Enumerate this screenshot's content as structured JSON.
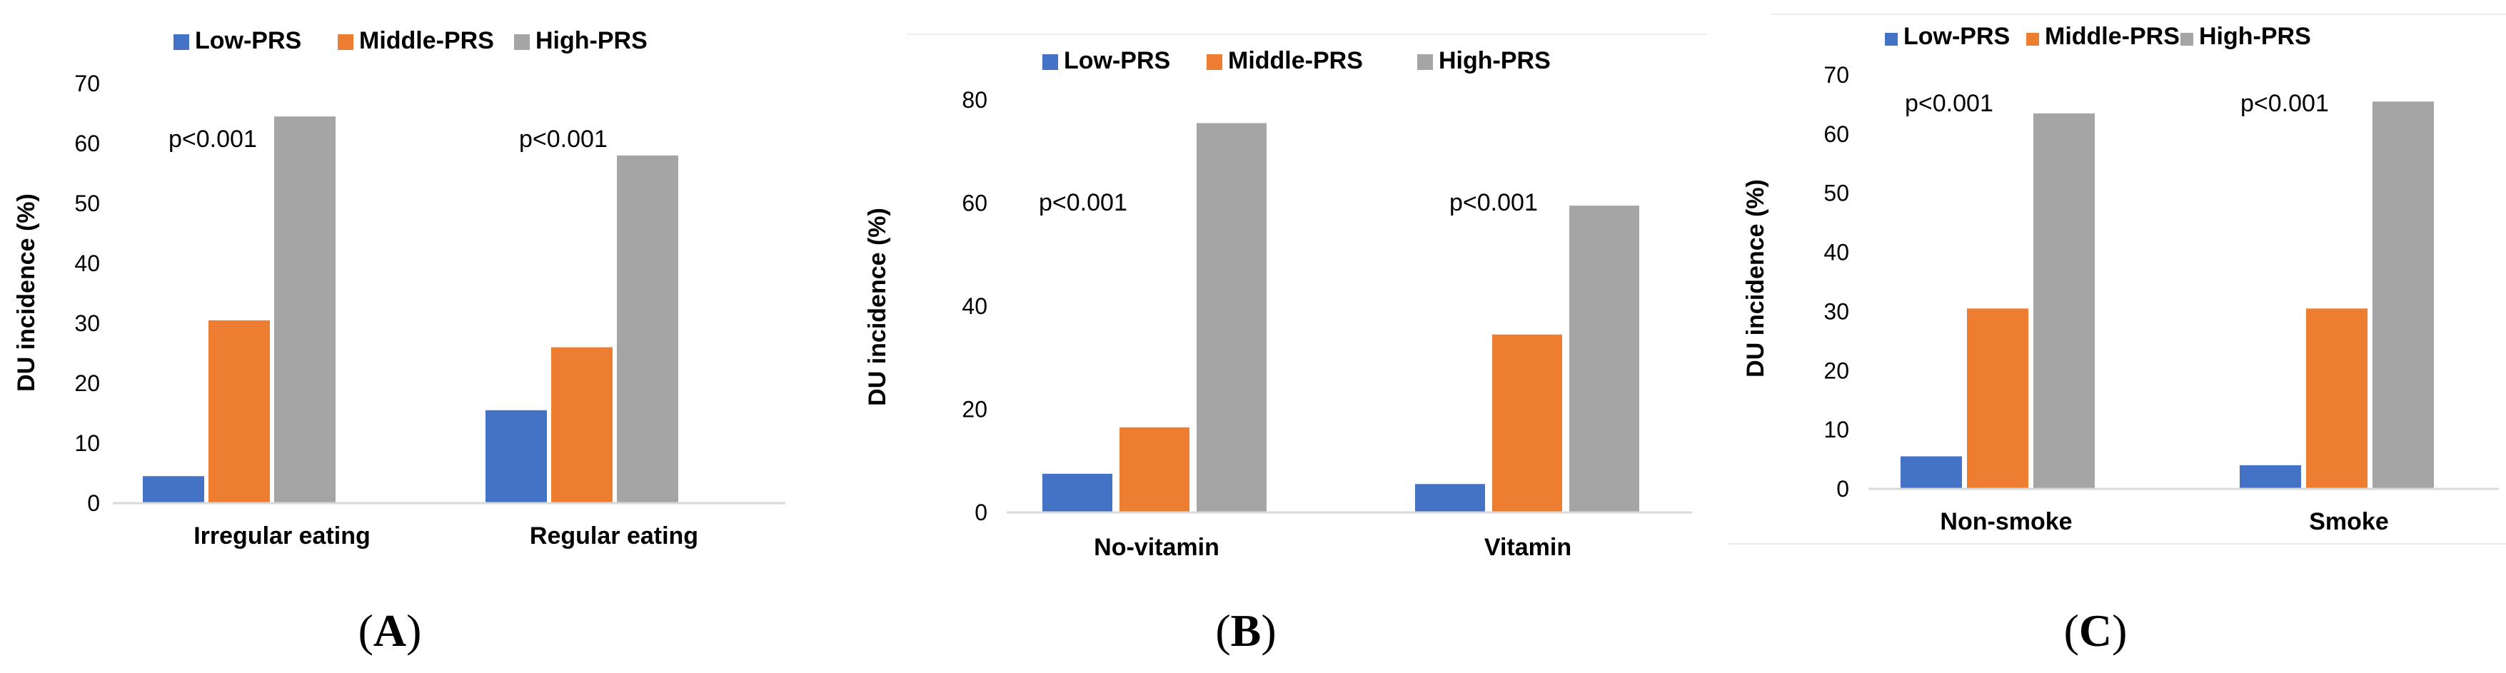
{
  "colors": {
    "low": "#4472c4",
    "middle": "#ed7d31",
    "high": "#a5a5a5"
  },
  "chart_data": [
    {
      "type": "bar",
      "panel_label": "A",
      "ylabel": "DU incidence (%)",
      "ylim": [
        0,
        70
      ],
      "yticks": [
        0,
        10,
        20,
        30,
        40,
        50,
        60,
        70
      ],
      "categories": [
        "Irregular eating",
        "Regular eating"
      ],
      "series": [
        {
          "name": "Low-PRS",
          "values": [
            4.5,
            15.5
          ]
        },
        {
          "name": "Middle-PRS",
          "values": [
            30.5,
            26.0
          ]
        },
        {
          "name": "High-PRS",
          "values": [
            64.5,
            58.0
          ]
        }
      ],
      "annotations": [
        "p<0.001",
        "p<0.001"
      ],
      "legend": "top"
    },
    {
      "type": "bar",
      "panel_label": "B",
      "ylabel": "DU incidence (%)",
      "ylim": [
        0,
        80
      ],
      "yticks": [
        0,
        20,
        40,
        60,
        80
      ],
      "categories": [
        "No-vitamin",
        "Vitamin"
      ],
      "series": [
        {
          "name": "Low-PRS",
          "values": [
            7.5,
            5.5
          ]
        },
        {
          "name": "Middle-PRS",
          "values": [
            16.5,
            34.5
          ]
        },
        {
          "name": "High-PRS",
          "values": [
            75.5,
            59.5
          ]
        }
      ],
      "annotations": [
        "p<0.001",
        "p<0.001"
      ],
      "legend": "top"
    },
    {
      "type": "bar",
      "panel_label": "C",
      "ylabel": "DU incidence (%)",
      "ylim": [
        0,
        70
      ],
      "yticks": [
        0,
        10,
        20,
        30,
        40,
        50,
        60,
        70
      ],
      "categories": [
        "Non-smoke",
        "Smoke"
      ],
      "series": [
        {
          "name": "Low-PRS",
          "values": [
            5.5,
            4.0
          ]
        },
        {
          "name": "Middle-PRS",
          "values": [
            30.5,
            30.5
          ]
        },
        {
          "name": "High-PRS",
          "values": [
            63.5,
            65.5
          ]
        }
      ],
      "annotations": [
        "p<0.001",
        "p<0.001"
      ],
      "legend": "top"
    }
  ]
}
